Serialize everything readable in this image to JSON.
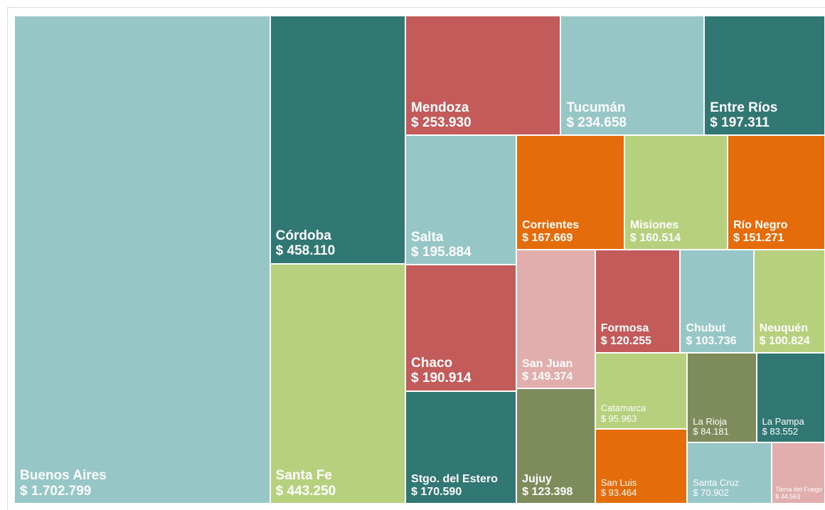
{
  "chart_data": {
    "type": "treemap",
    "categories": [
      "Buenos Aires",
      "Córdoba",
      "Santa Fe",
      "Mendoza",
      "Tucumán",
      "Entre Ríos",
      "Salta",
      "Chaco",
      "Stgo. del Estero",
      "Corrientes",
      "Misiones",
      "Río Negro",
      "San Juan",
      "Jujuy",
      "Formosa",
      "Chubut",
      "Neuquén",
      "Catamarca",
      "San Luis",
      "La Rioja",
      "La Pampa",
      "Santa Cruz",
      "Tierra del Fuego"
    ],
    "values": [
      1702799,
      458110,
      443250,
      253930,
      234658,
      197311,
      195884,
      190914,
      170590,
      167669,
      160514,
      151271,
      149374,
      123398,
      120255,
      103736,
      100824,
      95963,
      93464,
      84181,
      83552,
      70902,
      44563
    ],
    "value_labels": [
      "$ 1.702.799",
      "$ 458.110",
      "$ 443.250",
      "$ 253.930",
      "$ 234.658",
      "$ 197.311",
      "$ 195.884",
      "$ 190.914",
      "$ 170.590",
      "$ 167.669",
      "$ 160.514",
      "$ 151.271",
      "$ 149.374",
      "$ 123.398",
      "$ 120.255",
      "$ 103.736",
      "$ 100.824",
      "$ 95.963",
      "$ 93.464",
      "$ 84.181",
      "$ 83.552",
      "$ 70.902",
      "$ 44.563"
    ],
    "colors": [
      "#96c6c6",
      "#317773",
      "#b7d07e",
      "#c45b5b",
      "#96c6c6",
      "#317773",
      "#96c6c6",
      "#c45b5b",
      "#317773",
      "#e46c0a",
      "#b7d07e",
      "#e46c0a",
      "#e2adad",
      "#7e8c5c",
      "#c45b5b",
      "#96c6c6",
      "#b7d07e",
      "#b7d07e",
      "#e46c0a",
      "#7e8c5c",
      "#317773",
      "#96c6c6",
      "#e2adad"
    ]
  }
}
